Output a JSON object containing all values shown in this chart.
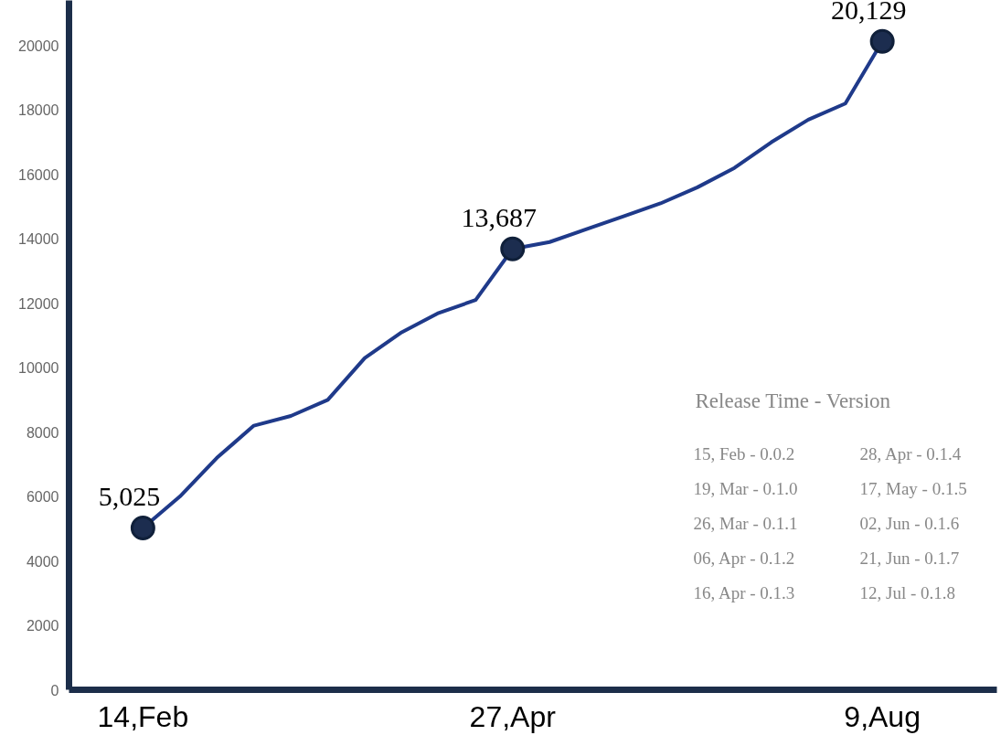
{
  "chart_data": {
    "type": "line",
    "categories": [
      "14,Feb",
      null,
      null,
      null,
      null,
      null,
      null,
      null,
      null,
      null,
      "27,Apr",
      null,
      null,
      null,
      null,
      null,
      null,
      null,
      null,
      null,
      "9,Aug"
    ],
    "ylim": [
      0,
      21400
    ],
    "yticks": [
      0,
      2000,
      4000,
      6000,
      8000,
      10000,
      12000,
      14000,
      16000,
      18000,
      20000
    ],
    "grid": false,
    "line_style": "solid",
    "series": [
      {
        "color": "#1f3a8a",
        "values": [
          5025,
          6000,
          7200,
          8200,
          8500,
          9000,
          10300,
          11100,
          11700,
          12100,
          13687,
          13900,
          14300,
          14700,
          15100,
          15600,
          16200,
          17000,
          17700,
          18200,
          20129
        ]
      },
      {
        "type": "scatter",
        "marker": "circle",
        "color": "#1c2d4f",
        "values": [
          5025,
          null,
          null,
          null,
          null,
          null,
          null,
          null,
          null,
          null,
          13687,
          null,
          null,
          null,
          null,
          null,
          null,
          null,
          null,
          null,
          20129
        ],
        "value_labels": [
          "5,025",
          null,
          null,
          null,
          null,
          null,
          null,
          null,
          null,
          null,
          "13,687",
          null,
          null,
          null,
          null,
          null,
          null,
          null,
          null,
          null,
          "20,129"
        ]
      }
    ],
    "annotations": [
      "Release Time - Version",
      "15, Feb - 0.0.2",
      "28, Apr - 0.1.4",
      "19, Mar - 0.1.0",
      "17, May - 0.1.5",
      "26, Mar - 0.1.1",
      "02, Jun  -  0.1.6",
      "06, Apr -  0.1.2",
      "21, Jun  - 0.1.7",
      "16, Apr -  0.1.3",
      "12, Jul  -  0.1.8"
    ]
  }
}
